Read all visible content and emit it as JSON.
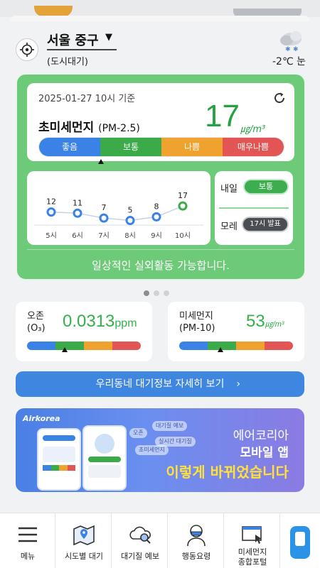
{
  "location": {
    "city": "서울 중구",
    "station": "(도시대기)"
  },
  "weather": {
    "temp": "-2℃ 눈",
    "icon": "snow-cloud-icon"
  },
  "main_card": {
    "timestamp": "2025-01-27 10시 기준",
    "pollutant": "초미세먼지",
    "pollutant_code": "(PM-2.5)",
    "value": "17",
    "unit": "㎍/m³",
    "scale": [
      "좋음",
      "보통",
      "나쁨",
      "매우나쁨"
    ],
    "scale_colors": [
      "#3b82e6",
      "#3bab4a",
      "#f0a22f",
      "#e35454"
    ],
    "level_fraction": 0.255,
    "message": "일상적인 실외활동 가능합니다."
  },
  "trend": {
    "points": [
      {
        "hour": "5시",
        "value": "12"
      },
      {
        "hour": "6시",
        "value": "11"
      },
      {
        "hour": "7시",
        "value": "7"
      },
      {
        "hour": "8시",
        "value": "5"
      },
      {
        "hour": "9시",
        "value": "8"
      },
      {
        "hour": "10시",
        "value": "17"
      }
    ]
  },
  "forecast": {
    "tomorrow_label": "내일",
    "tomorrow_value": "보통",
    "dayafter_label": "모레",
    "dayafter_value": "17시 발표"
  },
  "ozone": {
    "label": "오존",
    "sub": "(O₃)",
    "value": "0.0313",
    "unit": "ppm",
    "level_fraction": 0.33
  },
  "pm10": {
    "label": "미세먼지",
    "sub": "(PM-10)",
    "value": "53",
    "unit": "㎍/m³",
    "level_fraction": 0.36
  },
  "detail_button": "우리동네 대기정보 자세히 보기",
  "banner": {
    "logo": "Airkorea",
    "line1": "에어코리아",
    "line2": "모바일 앱",
    "line3": "이렇게 바뀌었습니다",
    "chips": [
      "대기질 예보",
      "오존",
      "실시간 대기질",
      "초미세먼지"
    ]
  },
  "nav": [
    {
      "label": "메뉴"
    },
    {
      "label": "시도별 대기"
    },
    {
      "label": "대기질 예보"
    },
    {
      "label": "행동요령"
    },
    {
      "label": "미세먼지\n종합포털"
    }
  ]
}
